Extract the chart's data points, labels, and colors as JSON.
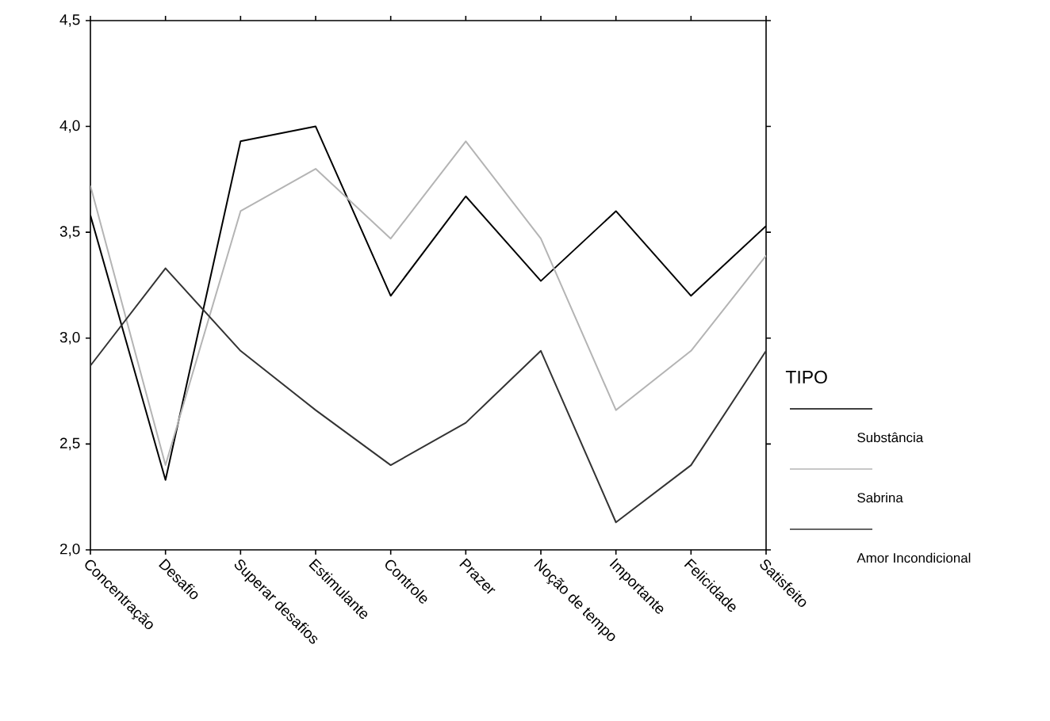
{
  "chart_data": {
    "type": "line",
    "categories": [
      "Concentração",
      "Desafio",
      "Superar desafios",
      "Estimulante",
      "Controle",
      "Prazer",
      "Noção de tempo",
      "Importante",
      "Felicidade",
      "Satisfeito"
    ],
    "series": [
      {
        "name": "Substância",
        "color": "#000000",
        "values": [
          3.58,
          2.33,
          3.93,
          4.0,
          3.2,
          3.67,
          3.27,
          3.6,
          3.2,
          3.53
        ]
      },
      {
        "name": "Sabrina",
        "color": "#b4b4b4",
        "values": [
          3.72,
          2.4,
          3.6,
          3.8,
          3.47,
          3.93,
          3.47,
          2.66,
          2.94,
          3.39
        ]
      },
      {
        "name": "Amor Incondicional",
        "color": "#333333",
        "values": [
          2.87,
          3.33,
          2.94,
          2.66,
          2.4,
          2.6,
          2.94,
          2.13,
          2.4,
          2.94
        ]
      }
    ],
    "ylim": [
      2.0,
      4.5
    ],
    "yticks": [
      {
        "value": 2.0,
        "label": "2,0"
      },
      {
        "value": 2.5,
        "label": "2,5"
      },
      {
        "value": 3.0,
        "label": "3,0"
      },
      {
        "value": 3.5,
        "label": "3,5"
      },
      {
        "value": 4.0,
        "label": "4,0"
      },
      {
        "value": 4.5,
        "label": "4,5"
      }
    ],
    "legend_title": "TIPO",
    "legend": "right",
    "grid": false,
    "marker": "none",
    "line_style": "solid"
  }
}
